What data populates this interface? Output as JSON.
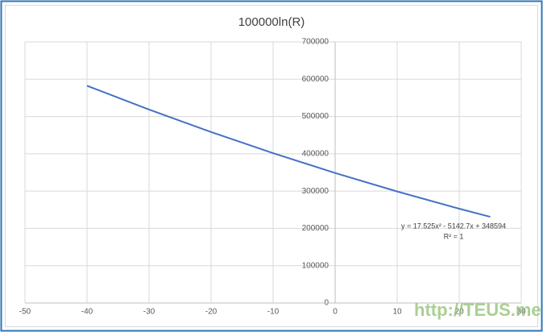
{
  "chart_data": {
    "type": "line",
    "title": "100000ln(R)",
    "x": [
      -40,
      -30,
      -20,
      -10,
      0,
      10,
      20,
      25
    ],
    "values": [
      582342,
      518648,
      458458,
      401774,
      348594,
      298920,
      252750,
      230980
    ],
    "color": "#4472c4",
    "xlim": [
      -50,
      30
    ],
    "xticks": [
      -50,
      -40,
      -30,
      -20,
      -10,
      0,
      10,
      20,
      30
    ],
    "ylim": [
      0,
      700000
    ],
    "yticks": [
      0,
      100000,
      200000,
      300000,
      400000,
      500000,
      600000,
      700000
    ],
    "grid": true,
    "annotations": [
      "y = 17.525x² - 5142.7x + 348594",
      "R² = 1"
    ],
    "watermark": "http://TEUS.me"
  }
}
